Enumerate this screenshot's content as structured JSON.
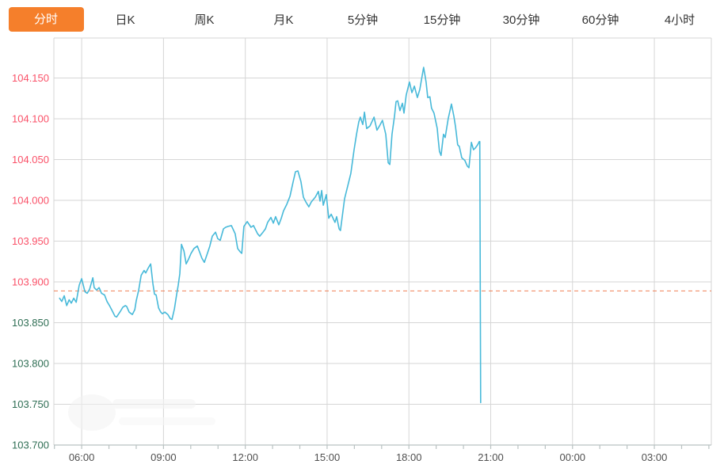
{
  "tabs": {
    "items": [
      {
        "id": "intraday",
        "label": "分时",
        "active": true
      },
      {
        "id": "daily-k",
        "label": "日K",
        "active": false
      },
      {
        "id": "weekly-k",
        "label": "周K",
        "active": false
      },
      {
        "id": "monthly-k",
        "label": "月K",
        "active": false
      },
      {
        "id": "5min",
        "label": "5分钟",
        "active": false
      },
      {
        "id": "15min",
        "label": "15分钟",
        "active": false
      },
      {
        "id": "30min",
        "label": "30分钟",
        "active": false
      },
      {
        "id": "60min",
        "label": "60分钟",
        "active": false
      },
      {
        "id": "4hour",
        "label": "4小时",
        "active": false
      }
    ]
  },
  "colors": {
    "tab_active_bg": "#f57f2b",
    "tab_active_text": "#ffffff",
    "tab_text": "#333333",
    "line": "#47b9d9",
    "grid": "#d6d6d6",
    "axis": "#b9c2c2",
    "tick_up": "#fa5168",
    "tick_down": "#2f6e54",
    "x_label": "#4f4f4f",
    "reference_dash": "#f08157"
  },
  "chart_data": {
    "type": "line",
    "title": "",
    "xlabel": "",
    "ylabel": "",
    "grid": true,
    "legend": "none",
    "ylim": [
      103.7,
      104.199
    ],
    "xlim_hours": [
      4.98,
      29.09
    ],
    "reference_price": 103.889,
    "y_ticks": [
      {
        "label": "104.150",
        "value": 104.15,
        "tone": "up"
      },
      {
        "label": "104.100",
        "value": 104.1,
        "tone": "up"
      },
      {
        "label": "104.050",
        "value": 104.05,
        "tone": "up"
      },
      {
        "label": "104.000",
        "value": 104.0,
        "tone": "up"
      },
      {
        "label": "103.950",
        "value": 103.95,
        "tone": "up"
      },
      {
        "label": "103.900",
        "value": 103.9,
        "tone": "up"
      },
      {
        "label": "103.850",
        "value": 103.85,
        "tone": "down"
      },
      {
        "label": "103.800",
        "value": 103.8,
        "tone": "down"
      },
      {
        "label": "103.750",
        "value": 103.75,
        "tone": "down"
      },
      {
        "label": "103.700",
        "value": 103.7,
        "tone": "down"
      }
    ],
    "x_ticks": [
      {
        "label": "06:00",
        "hour": 6
      },
      {
        "label": "09:00",
        "hour": 9
      },
      {
        "label": "12:00",
        "hour": 12
      },
      {
        "label": "15:00",
        "hour": 15
      },
      {
        "label": "18:00",
        "hour": 18
      },
      {
        "label": "21:00",
        "hour": 21
      },
      {
        "label": "00:00",
        "hour": 24
      },
      {
        "label": "03:00",
        "hour": 27
      }
    ],
    "minor_tick_hours_step": 1,
    "series": [
      {
        "name": "price",
        "x_hours": [
          5.19,
          5.27,
          5.36,
          5.45,
          5.54,
          5.62,
          5.71,
          5.8,
          5.91,
          6.0,
          6.12,
          6.2,
          6.29,
          6.41,
          6.46,
          6.55,
          6.64,
          6.73,
          6.84,
          6.93,
          7.02,
          7.13,
          7.22,
          7.28,
          7.42,
          7.51,
          7.6,
          7.65,
          7.74,
          7.86,
          7.95,
          8.0,
          8.09,
          8.18,
          8.29,
          8.35,
          8.44,
          8.53,
          8.61,
          8.67,
          8.73,
          8.82,
          8.9,
          8.96,
          9.05,
          9.16,
          9.25,
          9.31,
          9.4,
          9.48,
          9.54,
          9.6,
          9.66,
          9.75,
          9.83,
          9.92,
          10.01,
          10.12,
          10.24,
          10.33,
          10.41,
          10.5,
          10.62,
          10.7,
          10.79,
          10.91,
          10.99,
          11.08,
          11.2,
          11.28,
          11.37,
          11.49,
          11.63,
          11.72,
          11.81,
          11.87,
          11.95,
          12.07,
          12.21,
          12.3,
          12.45,
          12.53,
          12.65,
          12.74,
          12.82,
          12.94,
          13.03,
          13.11,
          13.23,
          13.32,
          13.4,
          13.52,
          13.64,
          13.75,
          13.84,
          13.93,
          14.04,
          14.13,
          14.22,
          14.33,
          14.42,
          14.57,
          14.68,
          14.74,
          14.8,
          14.86,
          14.97,
          15.06,
          15.15,
          15.29,
          15.35,
          15.44,
          15.49,
          15.64,
          15.76,
          15.87,
          15.99,
          16.08,
          16.16,
          16.22,
          16.31,
          16.37,
          16.45,
          16.57,
          16.72,
          16.83,
          16.92,
          17.03,
          17.15,
          17.24,
          17.3,
          17.38,
          17.47,
          17.53,
          17.59,
          17.67,
          17.76,
          17.82,
          17.9,
          18.02,
          18.11,
          18.2,
          18.31,
          18.4,
          18.46,
          18.54,
          18.6,
          18.63,
          18.69,
          18.77,
          18.83,
          18.92,
          19.04,
          19.07,
          19.12,
          19.18,
          19.27,
          19.33,
          19.44,
          19.56,
          19.65,
          19.71,
          19.79,
          19.85,
          19.94,
          20.05,
          20.14,
          20.2,
          20.29,
          20.37,
          20.43,
          20.52,
          20.58,
          20.6,
          20.63
        ],
        "values": [
          103.88,
          103.876,
          103.883,
          103.871,
          103.878,
          103.874,
          103.88,
          103.875,
          103.896,
          103.904,
          103.888,
          103.886,
          103.891,
          103.905,
          103.893,
          103.89,
          103.893,
          103.886,
          103.884,
          103.876,
          103.871,
          103.864,
          103.858,
          103.857,
          103.864,
          103.869,
          103.871,
          103.87,
          103.863,
          103.86,
          103.866,
          103.877,
          103.89,
          103.908,
          103.914,
          103.911,
          103.917,
          103.922,
          103.898,
          103.885,
          103.884,
          103.868,
          103.863,
          103.861,
          103.863,
          103.86,
          103.855,
          103.854,
          103.867,
          103.884,
          103.896,
          103.91,
          103.946,
          103.938,
          103.922,
          103.928,
          103.935,
          103.941,
          103.944,
          103.936,
          103.929,
          103.924,
          103.936,
          103.944,
          103.956,
          103.961,
          103.953,
          103.951,
          103.965,
          103.967,
          103.968,
          103.969,
          103.959,
          103.941,
          103.937,
          103.935,
          103.968,
          103.974,
          103.967,
          103.969,
          103.959,
          103.956,
          103.961,
          103.965,
          103.973,
          103.979,
          103.972,
          103.98,
          103.97,
          103.978,
          103.987,
          103.995,
          104.005,
          104.022,
          104.035,
          104.036,
          104.023,
          104.004,
          103.998,
          103.992,
          103.998,
          104.004,
          104.011,
          103.999,
          104.012,
          103.994,
          104.007,
          103.978,
          103.983,
          103.973,
          103.98,
          103.965,
          103.963,
          104.002,
          104.018,
          104.033,
          104.062,
          104.081,
          104.096,
          104.102,
          104.093,
          104.108,
          104.088,
          104.091,
          104.102,
          104.086,
          104.091,
          104.098,
          104.081,
          104.046,
          104.044,
          104.081,
          104.103,
          104.121,
          104.122,
          104.11,
          104.119,
          104.107,
          104.129,
          104.145,
          104.132,
          104.14,
          104.126,
          104.136,
          104.148,
          104.163,
          104.151,
          104.145,
          104.126,
          104.127,
          104.113,
          104.107,
          104.088,
          104.076,
          104.06,
          104.055,
          104.081,
          104.077,
          104.1,
          104.118,
          104.103,
          104.09,
          104.068,
          104.066,
          104.052,
          104.049,
          104.042,
          104.04,
          104.071,
          104.062,
          104.064,
          104.068,
          104.072,
          104.072,
          103.752
        ]
      }
    ]
  }
}
